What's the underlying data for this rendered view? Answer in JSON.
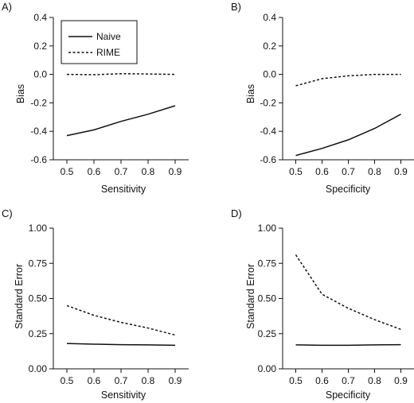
{
  "chart_data": [
    {
      "type": "line",
      "panel_label": "A)",
      "xlabel": "Sensitivity",
      "ylabel": "Bias",
      "x": [
        0.5,
        0.6,
        0.7,
        0.8,
        0.9
      ],
      "xticks": [
        "0.5",
        "0.6",
        "0.7",
        "0.8",
        "0.9"
      ],
      "xlim": [
        0.45,
        0.95
      ],
      "yticks": [
        "-0.6",
        "-0.4",
        "-0.2",
        "0.0",
        "0.2",
        "0.4"
      ],
      "ylim": [
        -0.6,
        0.4
      ],
      "series": [
        {
          "name": "Naive",
          "style": "solid",
          "values": [
            -0.43,
            -0.39,
            -0.33,
            -0.28,
            -0.22
          ]
        },
        {
          "name": "RIME",
          "style": "dashed",
          "values": [
            0.0,
            -0.002,
            0.005,
            0.003,
            0.0
          ]
        }
      ],
      "legend": {
        "placement": "top-left",
        "entries": [
          "Naive",
          "RIME"
        ]
      }
    },
    {
      "type": "line",
      "panel_label": "B)",
      "xlabel": "Specificity",
      "ylabel": "Bias",
      "x": [
        0.5,
        0.6,
        0.7,
        0.8,
        0.9
      ],
      "xticks": [
        "0.5",
        "0.6",
        "0.7",
        "0.8",
        "0.9"
      ],
      "xlim": [
        0.45,
        0.95
      ],
      "yticks": [
        "-0.6",
        "-0.4",
        "-0.2",
        "0.0",
        "0.2",
        "0.4"
      ],
      "ylim": [
        -0.6,
        0.4
      ],
      "series": [
        {
          "style": "solid",
          "values": [
            -0.57,
            -0.52,
            -0.46,
            -0.38,
            -0.28
          ]
        },
        {
          "style": "dashed",
          "values": [
            -0.08,
            -0.03,
            -0.01,
            0.0,
            0.0
          ]
        }
      ]
    },
    {
      "type": "line",
      "panel_label": "C)",
      "xlabel": "Sensitivity",
      "ylabel": "Standard Error",
      "x": [
        0.5,
        0.6,
        0.7,
        0.8,
        0.9
      ],
      "xticks": [
        "0.5",
        "0.6",
        "0.7",
        "0.8",
        "0.9"
      ],
      "xlim": [
        0.45,
        0.95
      ],
      "yticks": [
        "0.00",
        "0.25",
        "0.50",
        "0.75",
        "1.00"
      ],
      "ylim": [
        0,
        1.0
      ],
      "series": [
        {
          "style": "solid",
          "values": [
            0.18,
            0.175,
            0.172,
            0.17,
            0.167
          ]
        },
        {
          "style": "dashed",
          "values": [
            0.45,
            0.38,
            0.33,
            0.29,
            0.24
          ]
        }
      ]
    },
    {
      "type": "line",
      "panel_label": "D)",
      "xlabel": "Specificity",
      "ylabel": "Standard Error",
      "x": [
        0.5,
        0.6,
        0.7,
        0.8,
        0.9
      ],
      "xticks": [
        "0.5",
        "0.6",
        "0.7",
        "0.8",
        "0.9"
      ],
      "xlim": [
        0.45,
        0.95
      ],
      "yticks": [
        "0.00",
        "0.25",
        "0.50",
        "0.75",
        "1.00"
      ],
      "ylim": [
        0,
        1.0
      ],
      "series": [
        {
          "style": "solid",
          "values": [
            0.17,
            0.167,
            0.167,
            0.17,
            0.172
          ]
        },
        {
          "style": "dashed",
          "values": [
            0.81,
            0.53,
            0.43,
            0.35,
            0.28
          ]
        }
      ]
    }
  ]
}
